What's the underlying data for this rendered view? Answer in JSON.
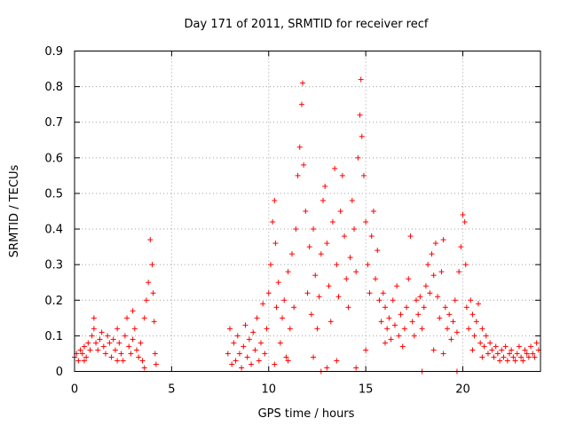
{
  "chart_data": {
    "type": "scatter",
    "title": "Day 171 of 2011, SRMTID for receiver recf",
    "xlabel": "GPS time / hours",
    "ylabel": "SRMTID / TECUs",
    "xlim": [
      0,
      24
    ],
    "ylim": [
      0,
      0.9
    ],
    "xticks": [
      0,
      5,
      10,
      15,
      20
    ],
    "yticks": [
      0,
      0.1,
      0.2,
      0.3,
      0.4,
      0.5,
      0.6,
      0.7,
      0.8,
      0.9
    ],
    "grid": true,
    "marker": "+",
    "color": "#ff0000",
    "series": [
      {
        "name": "SRMTID",
        "points": [
          [
            0.0,
            0.04
          ],
          [
            0.1,
            0.05
          ],
          [
            0.2,
            0.03
          ],
          [
            0.3,
            0.06
          ],
          [
            0.4,
            0.05
          ],
          [
            0.5,
            0.07
          ],
          [
            0.6,
            0.04
          ],
          [
            0.7,
            0.08
          ],
          [
            0.8,
            0.06
          ],
          [
            0.9,
            0.1
          ],
          [
            1.0,
            0.12
          ],
          [
            1.1,
            0.08
          ],
          [
            1.2,
            0.06
          ],
          [
            1.3,
            0.09
          ],
          [
            1.4,
            0.11
          ],
          [
            1.5,
            0.07
          ],
          [
            1.6,
            0.05
          ],
          [
            1.7,
            0.1
          ],
          [
            1.8,
            0.08
          ],
          [
            1.9,
            0.04
          ],
          [
            2.0,
            0.09
          ],
          [
            2.1,
            0.06
          ],
          [
            2.2,
            0.12
          ],
          [
            2.3,
            0.08
          ],
          [
            2.4,
            0.05
          ],
          [
            2.5,
            0.03
          ],
          [
            2.6,
            0.1
          ],
          [
            2.7,
            0.15
          ],
          [
            2.8,
            0.07
          ],
          [
            2.9,
            0.05
          ],
          [
            3.0,
            0.09
          ],
          [
            3.1,
            0.12
          ],
          [
            3.2,
            0.06
          ],
          [
            3.3,
            0.04
          ],
          [
            3.4,
            0.08
          ],
          [
            3.5,
            0.03
          ],
          [
            3.6,
            0.15
          ],
          [
            3.7,
            0.2
          ],
          [
            3.8,
            0.25
          ],
          [
            3.9,
            0.37
          ],
          [
            4.0,
            0.3
          ],
          [
            4.05,
            0.22
          ],
          [
            4.1,
            0.14
          ],
          [
            4.15,
            0.05
          ],
          [
            4.2,
            0.02
          ],
          [
            0.5,
            0.03
          ],
          [
            1.0,
            0.15
          ],
          [
            2.2,
            0.03
          ],
          [
            3.0,
            0.17
          ],
          [
            3.6,
            0.01
          ],
          [
            7.9,
            0.05
          ],
          [
            8.0,
            0.12
          ],
          [
            8.1,
            0.02
          ],
          [
            8.2,
            0.08
          ],
          [
            8.3,
            0.03
          ],
          [
            8.4,
            0.1
          ],
          [
            8.5,
            0.05
          ],
          [
            8.6,
            0.01
          ],
          [
            8.7,
            0.07
          ],
          [
            8.8,
            0.13
          ],
          [
            8.9,
            0.04
          ],
          [
            9.0,
            0.09
          ],
          [
            9.1,
            0.02
          ],
          [
            9.2,
            0.11
          ],
          [
            9.3,
            0.06
          ],
          [
            9.4,
            0.15
          ],
          [
            9.5,
            0.03
          ],
          [
            9.6,
            0.08
          ],
          [
            9.7,
            0.19
          ],
          [
            9.8,
            0.05
          ],
          [
            9.9,
            0.12
          ],
          [
            10.0,
            0.22
          ],
          [
            10.1,
            0.3
          ],
          [
            10.2,
            0.42
          ],
          [
            10.3,
            0.48
          ],
          [
            10.35,
            0.36
          ],
          [
            10.4,
            0.18
          ],
          [
            10.5,
            0.25
          ],
          [
            10.6,
            0.08
          ],
          [
            10.7,
            0.15
          ],
          [
            10.8,
            0.2
          ],
          [
            10.9,
            0.04
          ],
          [
            11.0,
            0.28
          ],
          [
            11.1,
            0.12
          ],
          [
            11.2,
            0.33
          ],
          [
            11.3,
            0.18
          ],
          [
            11.4,
            0.4
          ],
          [
            11.5,
            0.55
          ],
          [
            11.6,
            0.63
          ],
          [
            11.7,
            0.75
          ],
          [
            11.75,
            0.81
          ],
          [
            11.8,
            0.58
          ],
          [
            11.9,
            0.45
          ],
          [
            12.0,
            0.22
          ],
          [
            12.1,
            0.35
          ],
          [
            12.2,
            0.16
          ],
          [
            12.3,
            0.4
          ],
          [
            12.4,
            0.27
          ],
          [
            12.5,
            0.12
          ],
          [
            12.6,
            0.21
          ],
          [
            12.7,
            0.33
          ],
          [
            12.8,
            0.48
          ],
          [
            12.9,
            0.52
          ],
          [
            13.0,
            0.36
          ],
          [
            13.1,
            0.24
          ],
          [
            13.2,
            0.14
          ],
          [
            13.3,
            0.42
          ],
          [
            13.4,
            0.57
          ],
          [
            13.5,
            0.3
          ],
          [
            13.6,
            0.21
          ],
          [
            13.7,
            0.45
          ],
          [
            13.8,
            0.55
          ],
          [
            13.9,
            0.38
          ],
          [
            14.0,
            0.26
          ],
          [
            14.1,
            0.18
          ],
          [
            14.2,
            0.32
          ],
          [
            14.3,
            0.48
          ],
          [
            14.4,
            0.4
          ],
          [
            14.5,
            0.28
          ],
          [
            14.6,
            0.6
          ],
          [
            14.7,
            0.72
          ],
          [
            14.75,
            0.82
          ],
          [
            14.8,
            0.66
          ],
          [
            14.9,
            0.55
          ],
          [
            15.0,
            0.42
          ],
          [
            15.1,
            0.3
          ],
          [
            15.2,
            0.22
          ],
          [
            15.3,
            0.38
          ],
          [
            15.4,
            0.45
          ],
          [
            15.5,
            0.26
          ],
          [
            15.6,
            0.34
          ],
          [
            15.7,
            0.2
          ],
          [
            15.8,
            0.14
          ],
          [
            15.9,
            0.22
          ],
          [
            16.0,
            0.18
          ],
          [
            16.1,
            0.12
          ],
          [
            16.2,
            0.15
          ],
          [
            16.3,
            0.09
          ],
          [
            16.4,
            0.2
          ],
          [
            16.5,
            0.13
          ],
          [
            16.6,
            0.24
          ],
          [
            16.7,
            0.1
          ],
          [
            16.8,
            0.16
          ],
          [
            16.9,
            0.07
          ],
          [
            17.0,
            0.12
          ],
          [
            17.1,
            0.18
          ],
          [
            17.2,
            0.26
          ],
          [
            17.3,
            0.38
          ],
          [
            17.4,
            0.14
          ],
          [
            17.5,
            0.1
          ],
          [
            17.6,
            0.2
          ],
          [
            17.7,
            0.16
          ],
          [
            17.8,
            0.21
          ],
          [
            17.9,
            0.12
          ],
          [
            18.0,
            0.18
          ],
          [
            18.1,
            0.24
          ],
          [
            18.2,
            0.3
          ],
          [
            18.3,
            0.22
          ],
          [
            18.4,
            0.33
          ],
          [
            18.5,
            0.27
          ],
          [
            18.6,
            0.36
          ],
          [
            18.7,
            0.21
          ],
          [
            18.8,
            0.15
          ],
          [
            18.9,
            0.28
          ],
          [
            19.0,
            0.37
          ],
          [
            19.1,
            0.18
          ],
          [
            19.2,
            0.12
          ],
          [
            19.3,
            0.16
          ],
          [
            19.4,
            0.09
          ],
          [
            19.5,
            0.14
          ],
          [
            19.6,
            0.2
          ],
          [
            19.7,
            0.11
          ],
          [
            19.8,
            0.28
          ],
          [
            19.9,
            0.35
          ],
          [
            20.0,
            0.44
          ],
          [
            20.1,
            0.42
          ],
          [
            20.15,
            0.3
          ],
          [
            20.2,
            0.18
          ],
          [
            20.3,
            0.12
          ],
          [
            20.4,
            0.2
          ],
          [
            20.5,
            0.16
          ],
          [
            20.6,
            0.1
          ],
          [
            20.7,
            0.14
          ],
          [
            20.8,
            0.19
          ],
          [
            20.9,
            0.08
          ],
          [
            21.0,
            0.12
          ],
          [
            21.1,
            0.07
          ],
          [
            21.2,
            0.1
          ],
          [
            21.3,
            0.05
          ],
          [
            21.4,
            0.08
          ],
          [
            21.5,
            0.06
          ],
          [
            21.6,
            0.04
          ],
          [
            21.7,
            0.07
          ],
          [
            21.8,
            0.05
          ],
          [
            21.9,
            0.03
          ],
          [
            22.0,
            0.06
          ],
          [
            22.1,
            0.04
          ],
          [
            22.2,
            0.07
          ],
          [
            22.3,
            0.03
          ],
          [
            22.4,
            0.05
          ],
          [
            22.5,
            0.06
          ],
          [
            22.6,
            0.04
          ],
          [
            22.7,
            0.03
          ],
          [
            22.8,
            0.05
          ],
          [
            22.9,
            0.07
          ],
          [
            23.0,
            0.04
          ],
          [
            23.1,
            0.03
          ],
          [
            23.2,
            0.06
          ],
          [
            23.3,
            0.05
          ],
          [
            23.4,
            0.04
          ],
          [
            23.5,
            0.07
          ],
          [
            23.6,
            0.05
          ],
          [
            23.7,
            0.04
          ],
          [
            23.8,
            0.08
          ],
          [
            23.9,
            0.06
          ],
          [
            12.7,
            0.0
          ],
          [
            13.0,
            0.01
          ],
          [
            14.5,
            0.01
          ],
          [
            17.9,
            0.0
          ],
          [
            19.7,
            0.0
          ],
          [
            10.3,
            0.02
          ],
          [
            11.0,
            0.03
          ],
          [
            12.3,
            0.04
          ],
          [
            13.5,
            0.03
          ],
          [
            15.0,
            0.06
          ],
          [
            16.0,
            0.08
          ],
          [
            18.5,
            0.06
          ],
          [
            19.0,
            0.05
          ],
          [
            20.5,
            0.06
          ],
          [
            21.0,
            0.04
          ]
        ]
      }
    ]
  }
}
